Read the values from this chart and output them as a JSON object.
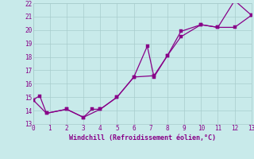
{
  "xlabel": "Windchill (Refroidissement éolien,°C)",
  "xlim": [
    0,
    13
  ],
  "ylim": [
    13,
    22
  ],
  "xticks": [
    0,
    1,
    2,
    3,
    4,
    5,
    6,
    7,
    8,
    9,
    10,
    11,
    12,
    13
  ],
  "yticks": [
    13,
    14,
    15,
    16,
    17,
    18,
    19,
    20,
    21,
    22
  ],
  "bg_color": "#c8eaea",
  "grid_color": "#a8cccc",
  "line_color": "#880088",
  "series1_x": [
    0,
    0.4,
    0.8,
    2.0,
    3.0,
    3.5,
    4.0,
    5.0,
    6.0,
    6.8,
    7.2,
    8.0,
    8.8,
    10.0,
    11.0,
    12.0,
    13.0
  ],
  "series1_y": [
    14.8,
    15.1,
    13.8,
    14.1,
    13.5,
    14.1,
    14.1,
    15.0,
    16.5,
    18.8,
    16.5,
    18.1,
    19.9,
    20.4,
    20.2,
    22.2,
    21.1
  ],
  "series2_x": [
    0,
    0.8,
    2.0,
    3.0,
    4.0,
    5.0,
    6.0,
    7.2,
    8.0,
    8.8,
    10.0,
    11.0,
    12.0,
    13.0
  ],
  "series2_y": [
    14.8,
    13.8,
    14.1,
    13.5,
    14.1,
    15.0,
    16.5,
    16.6,
    18.1,
    19.5,
    20.4,
    20.2,
    20.2,
    21.1
  ],
  "marker_size": 2.5,
  "line_width": 0.9
}
